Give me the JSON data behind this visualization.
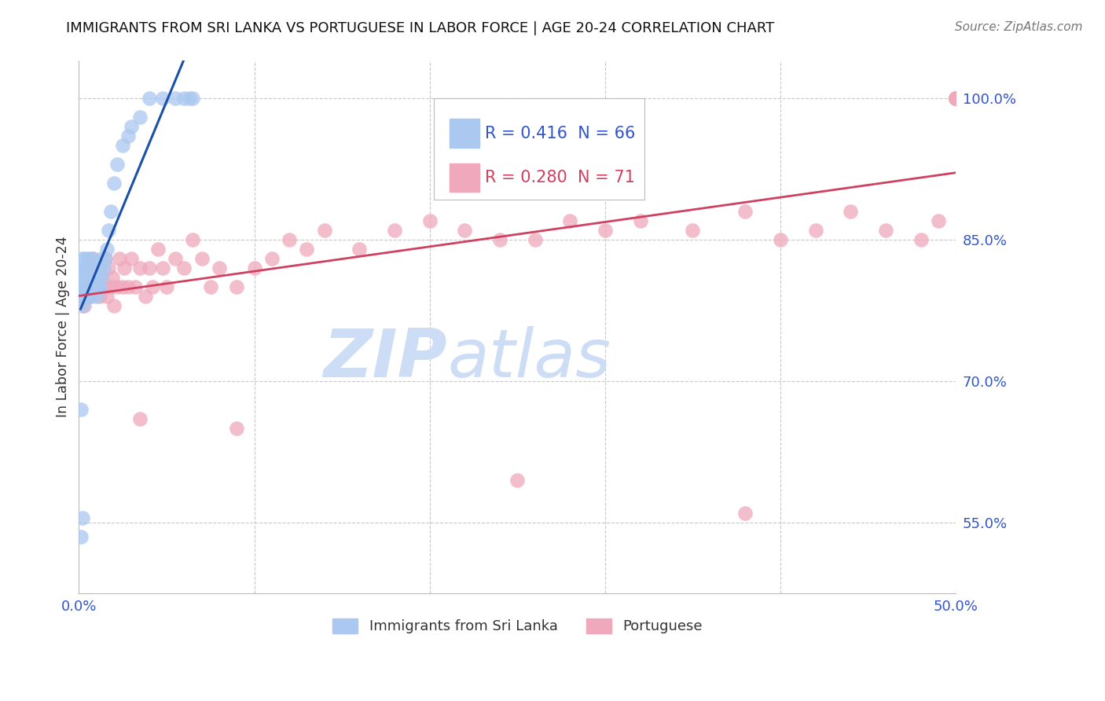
{
  "title": "IMMIGRANTS FROM SRI LANKA VS PORTUGUESE IN LABOR FORCE | AGE 20-24 CORRELATION CHART",
  "source": "Source: ZipAtlas.com",
  "ylabel": "In Labor Force | Age 20-24",
  "xmin": 0.0,
  "xmax": 0.5,
  "ymin": 0.475,
  "ymax": 1.04,
  "sri_lanka_R": 0.416,
  "sri_lanka_N": 66,
  "portuguese_R": 0.28,
  "portuguese_N": 71,
  "sri_lanka_color": "#aac8f0",
  "sri_lanka_line_color": "#1a4faa",
  "portuguese_color": "#f0a8bc",
  "portuguese_line_color": "#d04060",
  "watermark_color": "#ccddf5",
  "grid_color": "#c8c8c8",
  "axis_label_color": "#3355cc",
  "ytick_vals": [
    1.0,
    0.85,
    0.7,
    0.55
  ],
  "ytick_labels": [
    "100.0%",
    "85.0%",
    "70.0%",
    "55.0%"
  ],
  "xtick_vals": [
    0.0,
    0.5
  ],
  "xtick_labels": [
    "0.0%",
    "50.0%"
  ],
  "legend_R_sl": "R = 0.416",
  "legend_N_sl": "N = 66",
  "legend_R_pt": "R = 0.280",
  "legend_N_pt": "N = 71",
  "sl_x": [
    0.001,
    0.001,
    0.001,
    0.002,
    0.002,
    0.002,
    0.002,
    0.003,
    0.003,
    0.003,
    0.003,
    0.003,
    0.004,
    0.004,
    0.004,
    0.004,
    0.005,
    0.005,
    0.005,
    0.005,
    0.005,
    0.006,
    0.006,
    0.006,
    0.006,
    0.006,
    0.007,
    0.007,
    0.007,
    0.007,
    0.008,
    0.008,
    0.008,
    0.008,
    0.009,
    0.009,
    0.009,
    0.01,
    0.01,
    0.01,
    0.011,
    0.011,
    0.012,
    0.012,
    0.013,
    0.013,
    0.014,
    0.015,
    0.016,
    0.017,
    0.018,
    0.02,
    0.022,
    0.025,
    0.028,
    0.03,
    0.035,
    0.04,
    0.048,
    0.055,
    0.06,
    0.063,
    0.065,
    0.001,
    0.002,
    0.001
  ],
  "sl_y": [
    0.8,
    0.82,
    0.79,
    0.81,
    0.83,
    0.8,
    0.78,
    0.82,
    0.8,
    0.79,
    0.81,
    0.83,
    0.8,
    0.82,
    0.79,
    0.81,
    0.8,
    0.83,
    0.79,
    0.82,
    0.8,
    0.81,
    0.8,
    0.82,
    0.79,
    0.83,
    0.8,
    0.82,
    0.8,
    0.79,
    0.81,
    0.8,
    0.83,
    0.8,
    0.81,
    0.8,
    0.82,
    0.8,
    0.82,
    0.79,
    0.81,
    0.8,
    0.82,
    0.8,
    0.83,
    0.81,
    0.82,
    0.83,
    0.84,
    0.86,
    0.88,
    0.91,
    0.93,
    0.95,
    0.96,
    0.97,
    0.98,
    1.0,
    1.0,
    1.0,
    1.0,
    1.0,
    1.0,
    0.535,
    0.555,
    0.67
  ],
  "pt_x": [
    0.002,
    0.003,
    0.005,
    0.006,
    0.008,
    0.01,
    0.011,
    0.012,
    0.013,
    0.014,
    0.015,
    0.016,
    0.017,
    0.018,
    0.019,
    0.02,
    0.022,
    0.023,
    0.025,
    0.026,
    0.028,
    0.03,
    0.032,
    0.035,
    0.038,
    0.04,
    0.042,
    0.045,
    0.048,
    0.05,
    0.055,
    0.06,
    0.065,
    0.07,
    0.075,
    0.08,
    0.09,
    0.1,
    0.11,
    0.12,
    0.13,
    0.14,
    0.16,
    0.18,
    0.2,
    0.22,
    0.24,
    0.26,
    0.28,
    0.3,
    0.32,
    0.35,
    0.38,
    0.4,
    0.42,
    0.44,
    0.46,
    0.48,
    0.49,
    0.5,
    0.5,
    0.5,
    0.5,
    0.5,
    0.5,
    0.5,
    0.5,
    0.035,
    0.09,
    0.25,
    0.38
  ],
  "pt_y": [
    0.8,
    0.78,
    0.82,
    0.79,
    0.83,
    0.8,
    0.82,
    0.79,
    0.81,
    0.8,
    0.83,
    0.79,
    0.82,
    0.8,
    0.81,
    0.78,
    0.8,
    0.83,
    0.8,
    0.82,
    0.8,
    0.83,
    0.8,
    0.82,
    0.79,
    0.82,
    0.8,
    0.84,
    0.82,
    0.8,
    0.83,
    0.82,
    0.85,
    0.83,
    0.8,
    0.82,
    0.8,
    0.82,
    0.83,
    0.85,
    0.84,
    0.86,
    0.84,
    0.86,
    0.87,
    0.86,
    0.85,
    0.85,
    0.87,
    0.86,
    0.87,
    0.86,
    0.88,
    0.85,
    0.86,
    0.88,
    0.86,
    0.85,
    0.87,
    1.0,
    1.0,
    1.0,
    1.0,
    1.0,
    1.0,
    1.0,
    1.0,
    0.66,
    0.65,
    0.595,
    0.56
  ]
}
